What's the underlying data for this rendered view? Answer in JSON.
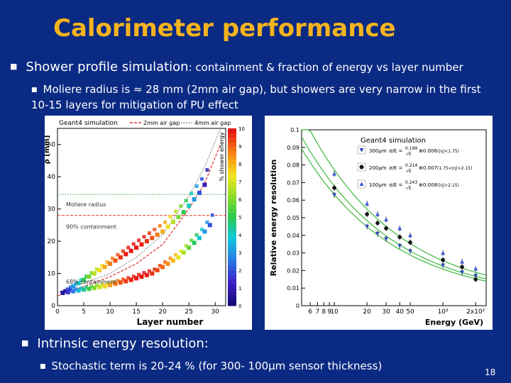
{
  "slide": {
    "title": "Calorimeter performance",
    "bullet1_main": "Shower profile simulation",
    "bullet1_rest": ": containment & fraction of energy vs layer number",
    "bullet1_sub": "Moliere radius is ≈ 28 mm (2mm air gap), but showers are very narrow in the first 10-15 layers for mitigation  of PU effect",
    "bullet2": "Intrinsic energy resolution:",
    "bullet2_sub": "Stochastic term is 20-24 %  (for 300- 100μm sensor thickness)",
    "page_number": "18",
    "colors": {
      "background": "#0b2a83",
      "title": "#f5b41e",
      "text": "#ffffff"
    }
  },
  "chart_data": [
    {
      "type": "scatter",
      "title": "Geant4 simulation",
      "xlabel": "Layer number",
      "ylabel": "ρ [mm]",
      "zlabel": "% shower energy",
      "xlim": [
        0,
        32
      ],
      "ylim": [
        0,
        55
      ],
      "zlim": [
        0,
        10
      ],
      "x_ticks": [
        "0",
        "5",
        "10",
        "15",
        "20",
        "25",
        "30"
      ],
      "y_ticks": [
        "0",
        "10",
        "20",
        "30",
        "40",
        "50"
      ],
      "z_ticks": [
        "0",
        "1",
        "2",
        "3",
        "4",
        "5",
        "6",
        "7",
        "8",
        "9",
        "10"
      ],
      "legend": [
        {
          "label": "2mm air gap",
          "color": "#e03030",
          "style": "dashed"
        },
        {
          "label": "4mm air gap",
          "color": "#777777",
          "style": "dotted"
        }
      ],
      "annotations": [
        {
          "text": "Moliere radius",
          "y": 31.5
        },
        {
          "text": "90% containment",
          "y": 24.5
        },
        {
          "text": "68% containment",
          "y": 7.5
        }
      ],
      "reference_lines": [
        {
          "name": "4mm air gap Moliere radius",
          "y": 34.5,
          "color": "#3a9a3a",
          "style": "dotted"
        },
        {
          "name": "2mm air gap Moliere radius",
          "y": 28,
          "color": "#e03030",
          "style": "dashed"
        }
      ],
      "series": [
        {
          "name": "90% containment",
          "x": [
            1,
            2,
            3,
            4,
            5,
            6,
            7,
            8,
            9,
            10,
            11,
            12,
            13,
            14,
            15,
            16,
            17,
            18,
            19,
            20,
            21,
            22,
            23,
            24,
            25,
            26,
            27,
            28
          ],
          "y": [
            4,
            5,
            6,
            7,
            8,
            9,
            10,
            11,
            12,
            13,
            14,
            15,
            16,
            17,
            18,
            19,
            20,
            21,
            22,
            23,
            24.5,
            26,
            27.5,
            29,
            31,
            33,
            35,
            37.5
          ]
        },
        {
          "name": "68% containment",
          "x": [
            1,
            2,
            3,
            4,
            5,
            6,
            7,
            8,
            9,
            10,
            11,
            12,
            13,
            14,
            15,
            16,
            17,
            18,
            19,
            20,
            21,
            22,
            23,
            24,
            25,
            26,
            27,
            28,
            29
          ],
          "y": [
            4,
            4.2,
            4.5,
            4.7,
            5,
            5.2,
            5.5,
            5.8,
            6,
            6.4,
            6.8,
            7.2,
            7.6,
            8,
            8.5,
            9,
            9.5,
            10,
            11,
            12,
            13,
            14,
            15,
            16.5,
            18,
            19.5,
            21,
            23,
            25
          ]
        },
        {
          "name": "2mm air gap fit",
          "x": [
            0,
            5,
            10,
            15,
            20,
            25,
            28,
            31
          ],
          "y": [
            3,
            6,
            9,
            13,
            19,
            30,
            38,
            50
          ]
        },
        {
          "name": "4mm air gap fit",
          "x": [
            0,
            5,
            10,
            15,
            20,
            25,
            28,
            31
          ],
          "y": [
            4,
            7,
            10,
            15,
            22,
            34,
            43,
            55
          ]
        }
      ]
    },
    {
      "type": "scatter",
      "title": "Geant4 simulation",
      "xlabel": "Energy (GeV)",
      "ylabel": "Relative energy resolution",
      "xscale": "log",
      "xlim": [
        5,
        250
      ],
      "ylim": [
        0,
        0.1
      ],
      "x_ticks": [
        "6",
        "7",
        "8",
        "9",
        "10",
        "20",
        "30",
        "40",
        "50",
        "10²",
        "2x10²"
      ],
      "y_ticks": [
        "0",
        "0.01",
        "0.02",
        "0.03",
        "0.04",
        "0.05",
        "0.06",
        "0.07",
        "0.08",
        "0.09",
        "0.1"
      ],
      "legend": [
        {
          "label": "300μm",
          "formula_num": "0.199",
          "formula_const": "⊕0.006",
          "eta": "(|η|<1.75)",
          "marker": "triangle-down"
        },
        {
          "label": "200μm",
          "formula_num": "0.214",
          "formula_const": "⊕0.007",
          "eta": "(1.75<|η|<2.15)",
          "marker": "circle"
        },
        {
          "label": "100μm",
          "formula_num": "0.243",
          "formula_const": "⊕0.008",
          "eta": "(|η|>2.15)",
          "marker": "triangle-up"
        }
      ],
      "formula_prefix": "σ/E = ",
      "formula_den": "√E",
      "series": [
        {
          "name": "300μm",
          "x": [
            10,
            20,
            25,
            30,
            40,
            50,
            100,
            150,
            200
          ],
          "y": [
            0.063,
            0.045,
            0.041,
            0.038,
            0.034,
            0.031,
            0.023,
            0.019,
            0.017
          ]
        },
        {
          "name": "200μm",
          "x": [
            10,
            20,
            25,
            30,
            40,
            50,
            100,
            150,
            200
          ],
          "y": [
            0.067,
            0.052,
            0.047,
            0.044,
            0.039,
            0.036,
            0.026,
            0.022,
            0.015
          ]
        },
        {
          "name": "100μm",
          "x": [
            10,
            20,
            25,
            30,
            40,
            50,
            100,
            150,
            200
          ],
          "y": [
            0.075,
            0.058,
            0.052,
            0.049,
            0.044,
            0.04,
            0.03,
            0.025,
            0.021
          ]
        }
      ]
    }
  ]
}
